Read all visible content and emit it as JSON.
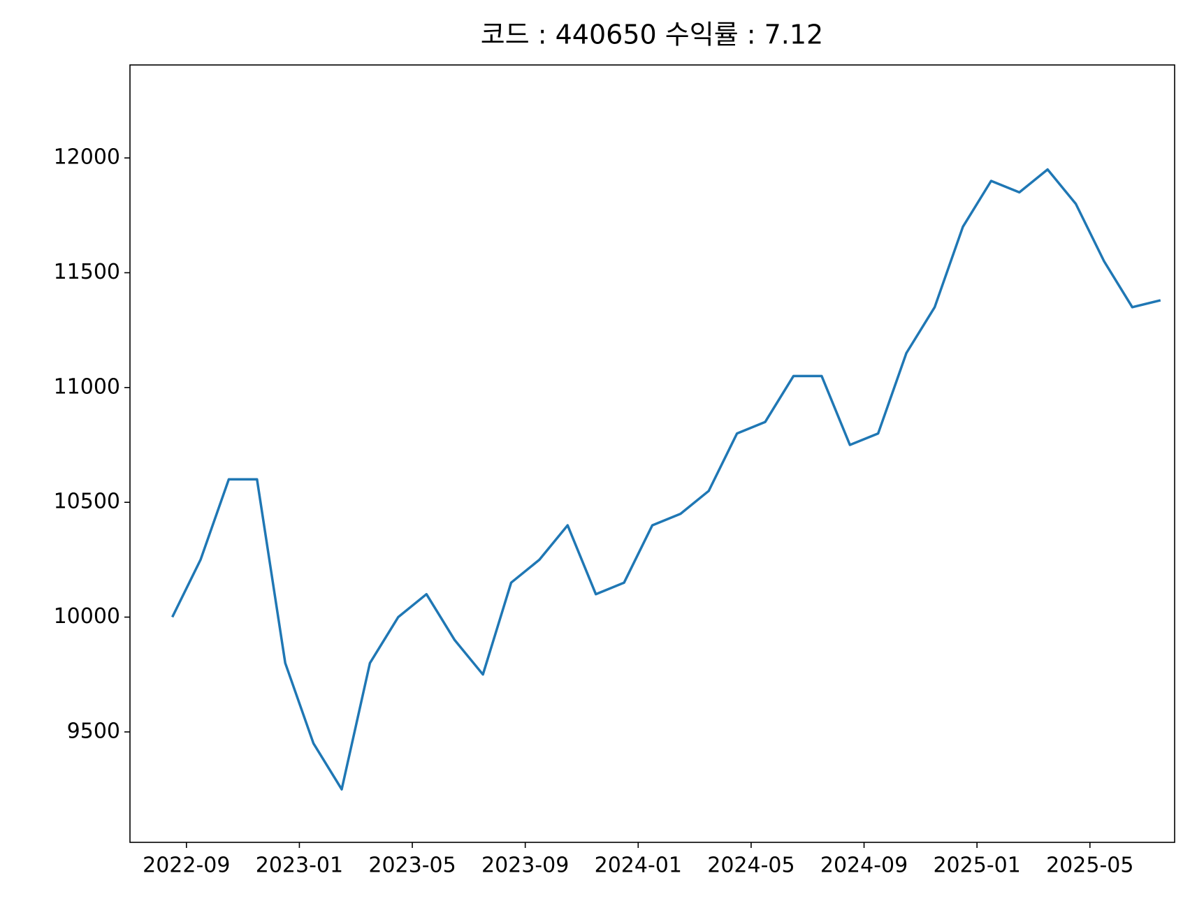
{
  "chart_data": {
    "type": "line",
    "title": "코드 : 440650 수익률 : 7.12",
    "x": [
      "2022-08",
      "2022-09",
      "2022-10",
      "2022-11",
      "2022-12",
      "2023-01",
      "2023-02",
      "2023-03",
      "2023-04",
      "2023-05",
      "2023-06",
      "2023-07",
      "2023-08",
      "2023-09",
      "2023-10",
      "2023-11",
      "2023-12",
      "2024-01",
      "2024-02",
      "2024-03",
      "2024-04",
      "2024-05",
      "2024-06",
      "2024-07",
      "2024-08",
      "2024-09",
      "2024-10",
      "2024-11",
      "2024-12",
      "2025-01",
      "2025-02",
      "2025-03",
      "2025-04",
      "2025-05",
      "2025-06",
      "2025-07"
    ],
    "series": [
      {
        "color": "#1f77b4",
        "values": [
          10000,
          10250,
          10600,
          10600,
          9800,
          9450,
          9250,
          9800,
          10000,
          10100,
          9900,
          9750,
          10150,
          10250,
          10400,
          10100,
          10150,
          10400,
          10450,
          10550,
          10800,
          10850,
          11050,
          11050,
          10750,
          10800,
          11150,
          11350,
          11700,
          11900,
          11850,
          11950,
          11800,
          11550,
          11350,
          11380
        ]
      }
    ],
    "xlim": [
      "2022-07",
      "2025-08"
    ],
    "xticks": [
      "2022-09",
      "2023-01",
      "2023-05",
      "2023-09",
      "2024-01",
      "2024-05",
      "2024-09",
      "2025-01",
      "2025-05"
    ],
    "ylim": [
      9019,
      12405
    ],
    "yticks": [
      9500,
      10000,
      10500,
      11000,
      11500,
      12000
    ],
    "grid": false
  }
}
